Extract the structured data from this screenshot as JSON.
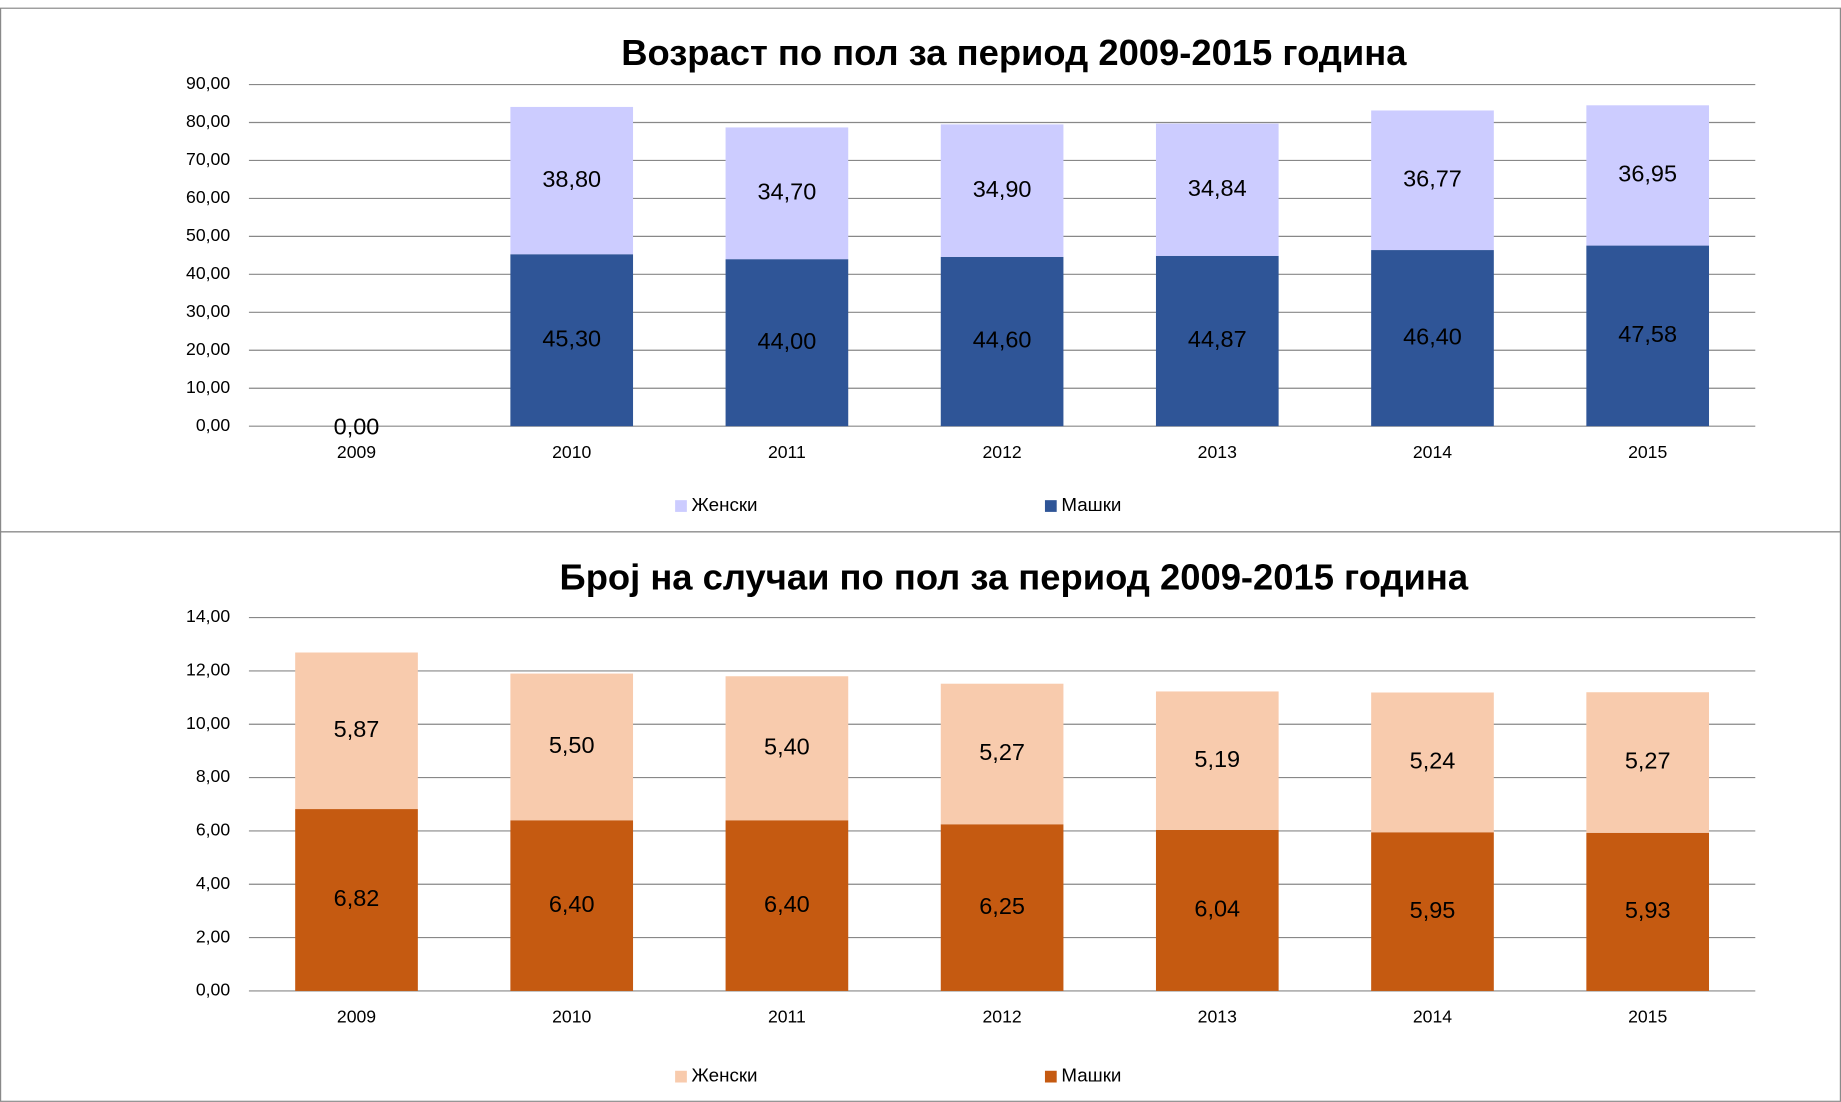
{
  "chart_data": [
    {
      "type": "bar",
      "stacked": true,
      "title": "Возраст по пол за период 2009-2015 година",
      "categories": [
        "2009",
        "2010",
        "2011",
        "2012",
        "2013",
        "2014",
        "2015"
      ],
      "series": [
        {
          "name": "Машки",
          "color": "#2f5597",
          "values": [
            0,
            45.3,
            44.0,
            44.6,
            44.87,
            46.4,
            47.58
          ],
          "value_labels": [
            "0,00",
            "45,30",
            "44,00",
            "44,60",
            "44,87",
            "46,40",
            "47,58"
          ]
        },
        {
          "name": "Женски",
          "color": "#ccccff",
          "values": [
            null,
            38.8,
            34.7,
            34.9,
            34.84,
            36.77,
            36.95
          ],
          "value_labels": [
            null,
            "38,80",
            "34,70",
            "34,90",
            "34,84",
            "36,77",
            "36,95"
          ]
        }
      ],
      "ylim": [
        0,
        90
      ],
      "yticks": [
        {
          "value": 0,
          "label": "0,00"
        },
        {
          "value": 10,
          "label": "10,00"
        },
        {
          "value": 20,
          "label": "20,00"
        },
        {
          "value": 30,
          "label": "30,00"
        },
        {
          "value": 40,
          "label": "40,00"
        },
        {
          "value": 50,
          "label": "50,00"
        },
        {
          "value": 60,
          "label": "60,00"
        },
        {
          "value": 70,
          "label": "70,00"
        },
        {
          "value": 80,
          "label": "80,00"
        },
        {
          "value": 90,
          "label": "90,00"
        }
      ],
      "grid": true,
      "legend": "bottom"
    },
    {
      "type": "bar",
      "stacked": true,
      "title": "Број на случаи по пол за период 2009-2015 година",
      "categories": [
        "2009",
        "2010",
        "2011",
        "2012",
        "2013",
        "2014",
        "2015"
      ],
      "series": [
        {
          "name": "Машки",
          "color": "#c55a11",
          "values": [
            6.82,
            6.4,
            6.4,
            6.25,
            6.04,
            5.95,
            5.93
          ],
          "value_labels": [
            "6,82",
            "6,40",
            "6,40",
            "6,25",
            "6,04",
            "5,95",
            "5,93"
          ]
        },
        {
          "name": "Женски",
          "color": "#f8cbad",
          "values": [
            5.87,
            5.5,
            5.4,
            5.27,
            5.19,
            5.24,
            5.27
          ],
          "value_labels": [
            "5,87",
            "5,50",
            "5,40",
            "5,27",
            "5,19",
            "5,24",
            "5,27"
          ]
        }
      ],
      "ylim": [
        0,
        14
      ],
      "yticks": [
        {
          "value": 0,
          "label": "0,00"
        },
        {
          "value": 2,
          "label": "2,00"
        },
        {
          "value": 4,
          "label": "4,00"
        },
        {
          "value": 6,
          "label": "6,00"
        },
        {
          "value": 8,
          "label": "8,00"
        },
        {
          "value": 10,
          "label": "10,00"
        },
        {
          "value": 12,
          "label": "12,00"
        },
        {
          "value": 14,
          "label": "14,00"
        }
      ],
      "grid": true,
      "legend": "bottom"
    }
  ]
}
